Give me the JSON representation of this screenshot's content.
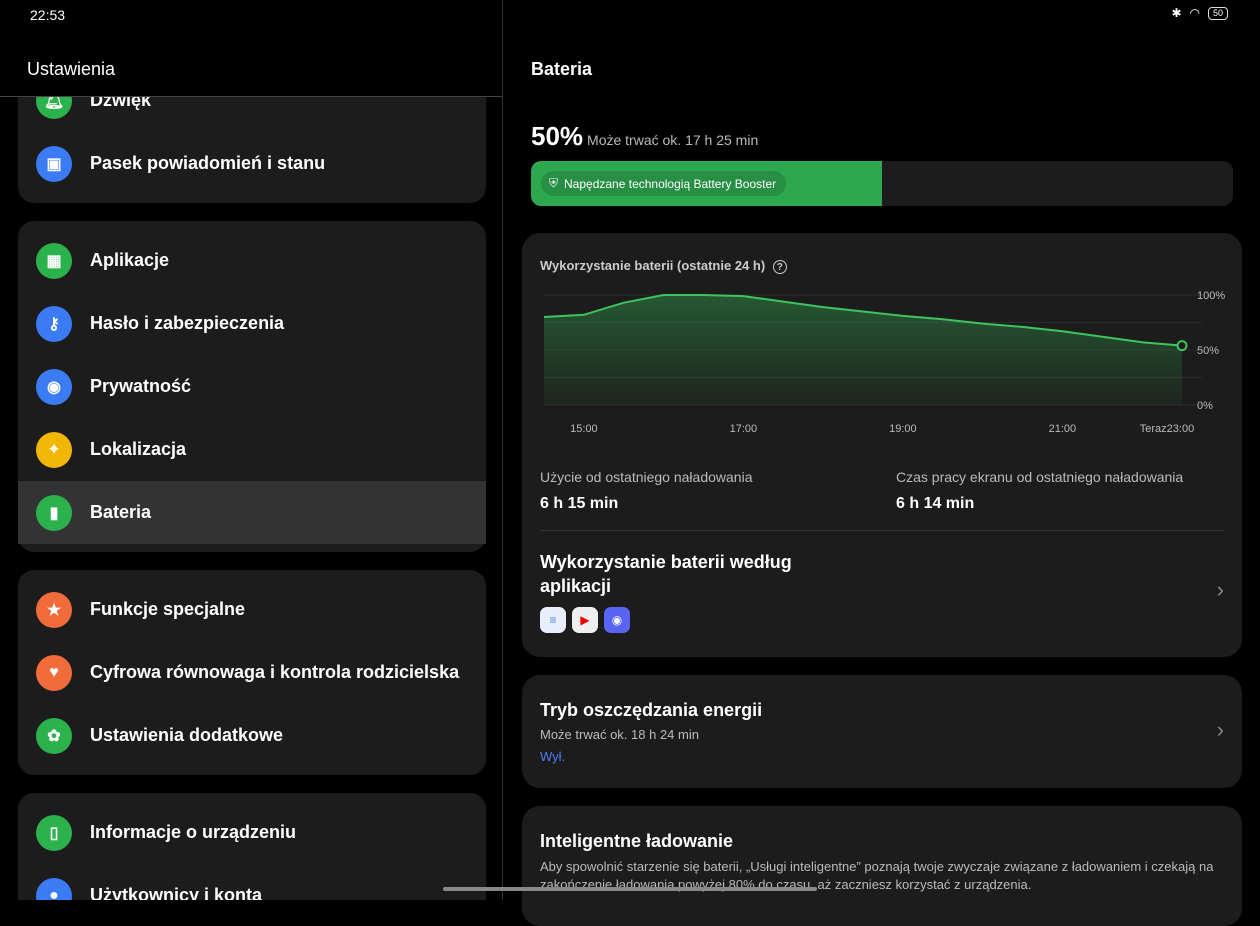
{
  "status": {
    "time": "22:53",
    "battery": "50"
  },
  "left": {
    "title": "Ustawienia",
    "groups": [
      [
        {
          "label": "Dźwięk",
          "icon": "bell-icon",
          "color": "#2bb24c"
        },
        {
          "label": "Pasek powiadomień i stanu",
          "icon": "notification-icon",
          "color": "#3b7cf5"
        }
      ],
      [
        {
          "label": "Aplikacje",
          "icon": "apps-icon",
          "color": "#2bb24c"
        },
        {
          "label": "Hasło i zabezpieczenia",
          "icon": "key-icon",
          "color": "#3b7cf5"
        },
        {
          "label": "Prywatność",
          "icon": "eye-lock-icon",
          "color": "#3b7cf5"
        },
        {
          "label": "Lokalizacja",
          "icon": "location-icon",
          "color": "#f2b705"
        },
        {
          "label": "Bateria",
          "icon": "battery-icon",
          "color": "#2bb24c",
          "selected": true
        }
      ],
      [
        {
          "label": "Funkcje specjalne",
          "icon": "star-icon",
          "color": "#f26b3a"
        },
        {
          "label": "Cyfrowa równowaga i kontrola rodzicielska",
          "icon": "heart-person-icon",
          "color": "#f26b3a"
        },
        {
          "label": "Ustawienia dodatkowe",
          "icon": "gear-icon",
          "color": "#2bb24c"
        }
      ],
      [
        {
          "label": "Informacje o urządzeniu",
          "icon": "phone-icon",
          "color": "#2bb24c"
        },
        {
          "label": "Użytkownicy i konta",
          "icon": "user-icon",
          "color": "#3b7cf5"
        }
      ]
    ]
  },
  "right": {
    "title": "Bateria",
    "percent": "50%",
    "percent_value": 50,
    "estimate": "Może trwać ok. 17 h 25 min",
    "booster": "Napędzane technologią Battery Booster",
    "usage_card": {
      "title": "Wykorzystanie baterii (ostatnie 24 h)",
      "stat1_label": "Użycie od ostatniego naładowania",
      "stat1_value": "6 h 15 min",
      "stat2_label": "Czas pracy ekranu od ostatniego naładowania",
      "stat2_value": "6 h 14 min",
      "by_app": "Wykorzystanie baterii według aplikacji",
      "apps": [
        "docs-icon",
        "youtube-icon",
        "discord-icon"
      ]
    },
    "saver": {
      "title": "Tryb oszczędzania energii",
      "subtitle": "Może trwać ok. 18 h 24 min",
      "state": "Wył."
    },
    "smart": {
      "title": "Inteligentne ładowanie",
      "desc": "Aby spowolnić starzenie się baterii, „Usługi inteligentne” poznają twoje zwyczaje związane z ładowaniem i czekają na zakończenie ładowania powyżej 80% do czasu, aż zaczniesz korzystać z urządzenia."
    }
  },
  "chart_data": {
    "type": "area",
    "x": [
      "14:30",
      "15:00",
      "15:30",
      "16:00",
      "16:30",
      "17:00",
      "17:30",
      "18:00",
      "18:30",
      "19:00",
      "19:30",
      "20:00",
      "20:30",
      "21:00",
      "21:30",
      "22:00",
      "22:30"
    ],
    "values": [
      80,
      82,
      93,
      100,
      100,
      99,
      94,
      89,
      85,
      81,
      78,
      74,
      71,
      67,
      62,
      57,
      54
    ],
    "xticks": [
      "15:00",
      "17:00",
      "19:00",
      "21:00",
      "Teraz23:00"
    ],
    "yticks": [
      "100%",
      "50%",
      "0%"
    ],
    "ylim": [
      0,
      100
    ],
    "grid": true,
    "color": "#3ec45e"
  }
}
